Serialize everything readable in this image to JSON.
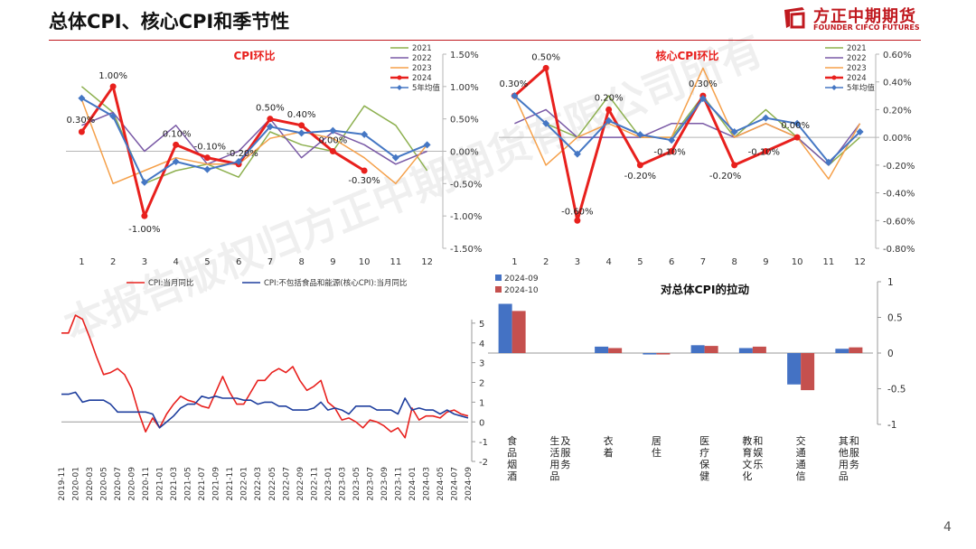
{
  "page": {
    "title": "总体CPI、核心CPI和季节性",
    "logo_cn": "方正中期期货",
    "logo_en": "FOUNDER CIFCO FUTURES",
    "page_number": "4",
    "watermark": "本报告版权归方正中期期货有限公司所有",
    "brand_color": "#c0191f"
  },
  "chart_data": [
    {
      "type": "line",
      "title": "CPI环比",
      "categories": [
        "1",
        "2",
        "3",
        "4",
        "5",
        "6",
        "7",
        "8",
        "9",
        "10",
        "11",
        "12"
      ],
      "ylim": [
        -1.5,
        1.5
      ],
      "yticks": [
        "1.50%",
        "1.00%",
        "0.50%",
        "0.00%",
        "-0.50%",
        "-1.00%",
        "-1.50%"
      ],
      "legend_position": "right",
      "series": [
        {
          "name": "2021",
          "color": "#8db04f",
          "width": 1.5,
          "values": [
            1.0,
            0.6,
            -0.5,
            -0.3,
            -0.2,
            -0.4,
            0.3,
            0.1,
            0.0,
            0.7,
            0.4,
            -0.3
          ]
        },
        {
          "name": "2022",
          "color": "#7a5aa6",
          "width": 1.5,
          "values": [
            0.4,
            0.6,
            0.0,
            0.4,
            -0.2,
            0.0,
            0.5,
            -0.1,
            0.3,
            0.1,
            -0.2,
            0.0
          ]
        },
        {
          "name": "2023",
          "color": "#f5a04a",
          "width": 1.5,
          "values": [
            0.8,
            -0.5,
            -0.3,
            -0.1,
            -0.2,
            -0.2,
            0.2,
            0.3,
            0.2,
            -0.1,
            -0.5,
            0.1
          ]
        },
        {
          "name": "2024",
          "color": "#e8201d",
          "width": 3,
          "marker": "circle",
          "values": [
            0.3,
            1.0,
            -1.0,
            0.1,
            -0.1,
            -0.2,
            0.5,
            0.4,
            0.0,
            -0.3,
            null,
            null
          ]
        },
        {
          "name": "5年均值",
          "color": "#4577c4",
          "width": 2,
          "marker": "diamond",
          "values": [
            0.82,
            0.54,
            -0.48,
            -0.16,
            -0.28,
            -0.16,
            0.38,
            0.28,
            0.32,
            0.26,
            -0.1,
            0.1
          ]
        }
      ],
      "data_labels": [
        {
          "x": 1,
          "y": 0.3,
          "text": "0.30%"
        },
        {
          "x": 2,
          "y": 1.0,
          "text": "1.00%"
        },
        {
          "x": 3,
          "y": -1.0,
          "text": "-1.00%"
        },
        {
          "x": 4,
          "y": 0.1,
          "text": "0.10%"
        },
        {
          "x": 5,
          "y": -0.1,
          "text": "-0.10%"
        },
        {
          "x": 6,
          "y": -0.2,
          "text": "-0.20%"
        },
        {
          "x": 7,
          "y": 0.5,
          "text": "0.50%"
        },
        {
          "x": 8,
          "y": 0.4,
          "text": "0.40%"
        },
        {
          "x": 9,
          "y": 0.0,
          "text": "0.00%"
        },
        {
          "x": 10,
          "y": -0.3,
          "text": "-0.30%"
        }
      ]
    },
    {
      "type": "line",
      "title": "核心CPI环比",
      "categories": [
        "1",
        "2",
        "3",
        "4",
        "5",
        "6",
        "7",
        "8",
        "9",
        "10",
        "11",
        "12"
      ],
      "ylim": [
        -0.8,
        0.6
      ],
      "yticks": [
        "0.60%",
        "0.40%",
        "0.20%",
        "0.00%",
        "-0.20%",
        "-0.40%",
        "-0.60%",
        "-0.80%"
      ],
      "legend_position": "right",
      "series": [
        {
          "name": "2021",
          "color": "#8db04f",
          "width": 1.5,
          "values": [
            0.3,
            0.1,
            0.0,
            0.3,
            0.0,
            0.0,
            0.3,
            0.0,
            0.2,
            0.0,
            -0.2,
            0.0
          ]
        },
        {
          "name": "2022",
          "color": "#7a5aa6",
          "width": 1.5,
          "values": [
            0.1,
            0.2,
            0.0,
            0.0,
            0.0,
            0.1,
            0.1,
            0.0,
            0.1,
            0.0,
            -0.2,
            0.1
          ]
        },
        {
          "name": "2023",
          "color": "#f5a04a",
          "width": 1.5,
          "values": [
            0.3,
            -0.2,
            0.0,
            0.1,
            0.0,
            0.0,
            0.5,
            0.0,
            0.1,
            0.0,
            -0.3,
            0.1
          ]
        },
        {
          "name": "2024",
          "color": "#e8201d",
          "width": 3,
          "marker": "circle",
          "values": [
            0.3,
            0.5,
            -0.6,
            0.2,
            -0.2,
            -0.1,
            0.3,
            -0.2,
            -0.1,
            0.0,
            null,
            null
          ]
        },
        {
          "name": "5年均值",
          "color": "#4577c4",
          "width": 2,
          "marker": "diamond",
          "values": [
            0.3,
            0.1,
            -0.12,
            0.12,
            0.02,
            -0.02,
            0.28,
            0.04,
            0.14,
            0.1,
            -0.18,
            0.04
          ]
        }
      ],
      "data_labels": [
        {
          "x": 1,
          "y": 0.3,
          "text": "0.30%"
        },
        {
          "x": 2,
          "y": 0.5,
          "text": "0.50%"
        },
        {
          "x": 3,
          "y": -0.6,
          "text": "-0.60%"
        },
        {
          "x": 4,
          "y": 0.2,
          "text": "0.20%"
        },
        {
          "x": 5,
          "y": -0.2,
          "text": "-0.20%"
        },
        {
          "x": 6,
          "y": -0.1,
          "text": "-0.10%"
        },
        {
          "x": 7,
          "y": 0.3,
          "text": "0.30%"
        },
        {
          "x": 8,
          "y": -0.2,
          "text": "-0.20%"
        },
        {
          "x": 9,
          "y": -0.1,
          "text": "-0.10%"
        },
        {
          "x": 10,
          "y": 0.0,
          "text": "0.00%"
        }
      ]
    },
    {
      "type": "line",
      "title": "",
      "ylim": [
        -2,
        6
      ],
      "yticks": [
        "5",
        "4",
        "3",
        "2",
        "1",
        "0",
        "-1",
        "-2"
      ],
      "xticks": [
        "2019-11",
        "2020-01",
        "2020-03",
        "2020-05",
        "2020-07",
        "2020-09",
        "2020-11",
        "2021-01",
        "2021-03",
        "2021-05",
        "2021-07",
        "2021-09",
        "2021-11",
        "2022-01",
        "2022-03",
        "2022-05",
        "2022-07",
        "2022-09",
        "2022-11",
        "2023-01",
        "2023-03",
        "2023-05",
        "2023-07",
        "2023-09",
        "2023-11",
        "2024-01",
        "2024-03",
        "2024-05",
        "2024-07",
        "2024-09"
      ],
      "legend_position": "top",
      "series": [
        {
          "name": "CPI:当月同比",
          "color": "#e8201d",
          "values": [
            4.5,
            4.5,
            5.4,
            5.2,
            4.3,
            3.3,
            2.4,
            2.5,
            2.7,
            2.4,
            1.7,
            0.5,
            -0.5,
            0.2,
            -0.3,
            0.4,
            0.9,
            1.3,
            1.1,
            1.0,
            0.8,
            0.7,
            1.5,
            2.3,
            1.5,
            0.9,
            0.9,
            1.5,
            2.1,
            2.1,
            2.5,
            2.7,
            2.5,
            2.8,
            2.1,
            1.6,
            1.8,
            2.1,
            1.0,
            0.7,
            0.1,
            0.2,
            0.0,
            -0.3,
            0.1,
            0.0,
            -0.2,
            -0.5,
            -0.3,
            -0.8,
            0.7,
            0.1,
            0.3,
            0.3,
            0.2,
            0.5,
            0.6,
            0.4,
            0.3
          ]
        },
        {
          "name": "CPI:不包括食品和能源(核心CPI):当月同比",
          "color": "#1f3f9e",
          "values": [
            1.4,
            1.4,
            1.5,
            1.0,
            1.1,
            1.1,
            1.1,
            0.9,
            0.5,
            0.5,
            0.5,
            0.5,
            0.5,
            0.4,
            -0.3,
            0.0,
            0.3,
            0.7,
            0.9,
            0.9,
            1.3,
            1.2,
            1.3,
            1.2,
            1.2,
            1.2,
            1.1,
            1.1,
            0.9,
            1.0,
            1.0,
            0.8,
            0.8,
            0.6,
            0.6,
            0.6,
            0.7,
            1.0,
            0.6,
            0.7,
            0.6,
            0.4,
            0.8,
            0.8,
            0.8,
            0.6,
            0.6,
            0.6,
            0.4,
            1.2,
            0.6,
            0.7,
            0.6,
            0.6,
            0.4,
            0.6,
            0.4,
            0.3,
            0.2
          ]
        }
      ]
    },
    {
      "type": "bar",
      "title": "对总体CPI的拉动",
      "categories": [
        "食品烟酒",
        "生活用品及服务",
        "衣着",
        "居住",
        "医疗保健",
        "教育文化和娱乐",
        "交通通信",
        "其他用品和服务"
      ],
      "ylim": [
        -1,
        1
      ],
      "yticks": [
        "1",
        "0.5",
        "0",
        "-0.5",
        "-1"
      ],
      "legend_position": "top-left",
      "series": [
        {
          "name": "2024-09",
          "color": "#4472c4",
          "values": [
            0.69,
            0.0,
            0.09,
            -0.02,
            0.11,
            0.07,
            -0.44,
            0.06
          ]
        },
        {
          "name": "2024-10",
          "color": "#c5504e",
          "values": [
            0.59,
            0.0,
            0.07,
            -0.02,
            0.1,
            0.09,
            -0.52,
            0.08
          ]
        }
      ]
    }
  ]
}
